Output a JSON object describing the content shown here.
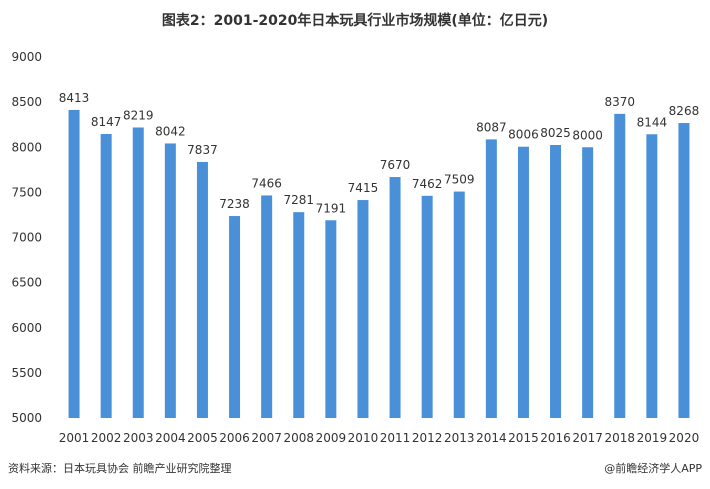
{
  "chart_data": {
    "type": "bar",
    "title": "图表2：2001-2020年日本玩具行业市场规模(单位：亿日元)",
    "xlabel": "",
    "ylabel": "",
    "categories": [
      "2001",
      "2002",
      "2003",
      "2004",
      "2005",
      "2006",
      "2007",
      "2008",
      "2009",
      "2010",
      "2011",
      "2012",
      "2013",
      "2014",
      "2015",
      "2016",
      "2017",
      "2018",
      "2019",
      "2020"
    ],
    "values": [
      8413,
      8147,
      8219,
      8042,
      7837,
      7238,
      7466,
      7281,
      7191,
      7415,
      7670,
      7462,
      7509,
      8087,
      8006,
      8025,
      8000,
      8370,
      8144,
      8268
    ],
    "ylim": [
      5000,
      9000
    ],
    "yticks": [
      5000,
      5500,
      6000,
      6500,
      7000,
      7500,
      8000,
      8500,
      9000
    ],
    "grid": false,
    "legend": "none",
    "bar_color": "#4a90d9"
  },
  "footer": {
    "source": "资料来源：日本玩具协会 前瞻产业研究院整理",
    "credit": "@前瞻经济学人APP"
  }
}
